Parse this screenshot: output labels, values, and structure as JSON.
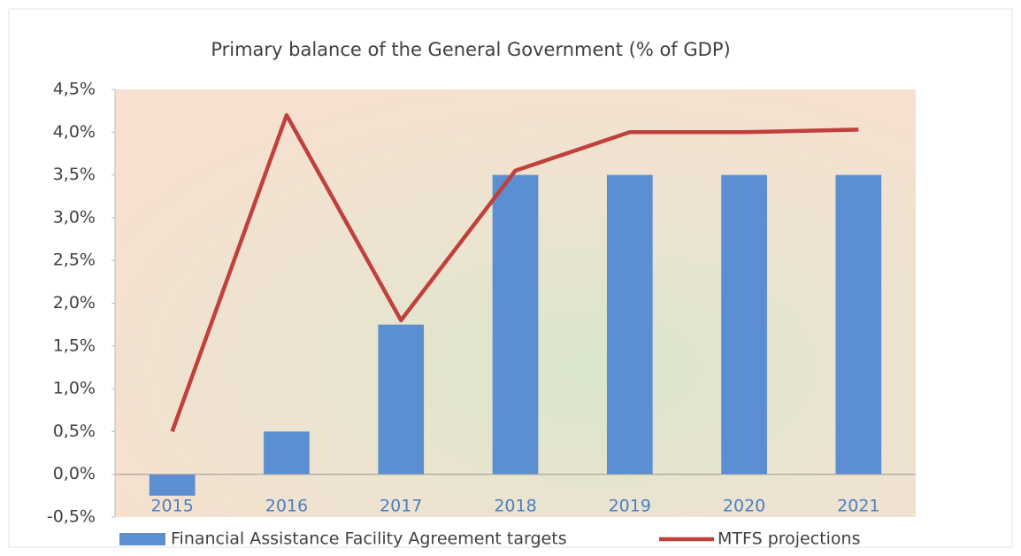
{
  "chart_data": {
    "type": "bar",
    "title": "Primary balance of the General Government  (% of GDP)",
    "categories": [
      "2015",
      "2016",
      "2017",
      "2018",
      "2019",
      "2020",
      "2021"
    ],
    "series": [
      {
        "name": "Financial Assistance Facility Agreement targets",
        "type": "bar",
        "color": "#5b8fd2",
        "values": [
          -0.25,
          0.5,
          1.75,
          3.5,
          3.5,
          3.5,
          3.5
        ]
      },
      {
        "name": "MTFS projections",
        "type": "line",
        "color": "#c0403c",
        "values": [
          0.5,
          4.2,
          1.8,
          3.55,
          4.0,
          4.0,
          4.03
        ]
      }
    ],
    "ylim": [
      -0.5,
      4.5
    ],
    "yticks": [
      {
        "value": -0.5,
        "label": "-0,5%"
      },
      {
        "value": 0,
        "label": "0,0%"
      },
      {
        "value": 0.5,
        "label": "0,5%"
      },
      {
        "value": 1.0,
        "label": "1,0%"
      },
      {
        "value": 1.5,
        "label": "1,5%"
      },
      {
        "value": 2.0,
        "label": "2,0%"
      },
      {
        "value": 2.5,
        "label": "2,5%"
      },
      {
        "value": 3.0,
        "label": "3,0%"
      },
      {
        "value": 3.5,
        "label": "3,5%"
      },
      {
        "value": 4.0,
        "label": "4,0%"
      },
      {
        "value": 4.5,
        "label": "4,5%"
      }
    ],
    "grid": false,
    "legend": "bottom"
  }
}
